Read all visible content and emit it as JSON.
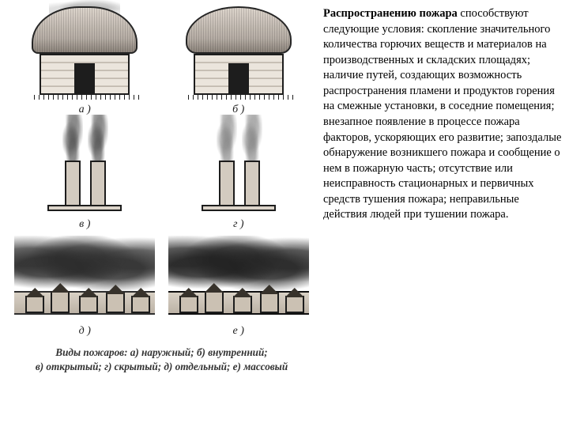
{
  "figure": {
    "labels": {
      "a": "а )",
      "b": "б )",
      "v": "в )",
      "g": "г )",
      "d": "д )",
      "e": "е )"
    },
    "caption_line1": "Виды пожаров: а) наружный; б) внутренний;",
    "caption_line2": "в) открытый; г) скрытый; д) отдельный; е) массовый"
  },
  "text": {
    "bold_prefix": "Распространению пожара",
    "body": " способствуют следующие условия: скопление значительного количества горючих веществ и материалов на производственных и складских площадях; наличие путей, создающих возможность распространения пламени и продуктов горения на смежные установки, в соседние помещения; внезапное появление в процессе пожара факторов, ускоряющих его развитие; запоздалые обнаружение возникшего пожара и сообщение о нем в пожарную часть; отсутствие или неисправность стационарных и первичных средств тушения пожара; неправильные действия людей при тушении пожара."
  },
  "style": {
    "body_fontsize": 14.5,
    "caption_fontsize": 13.2,
    "label_fontsize": 14,
    "text_color": "#000000",
    "caption_color": "#333333",
    "background": "#ffffff"
  }
}
